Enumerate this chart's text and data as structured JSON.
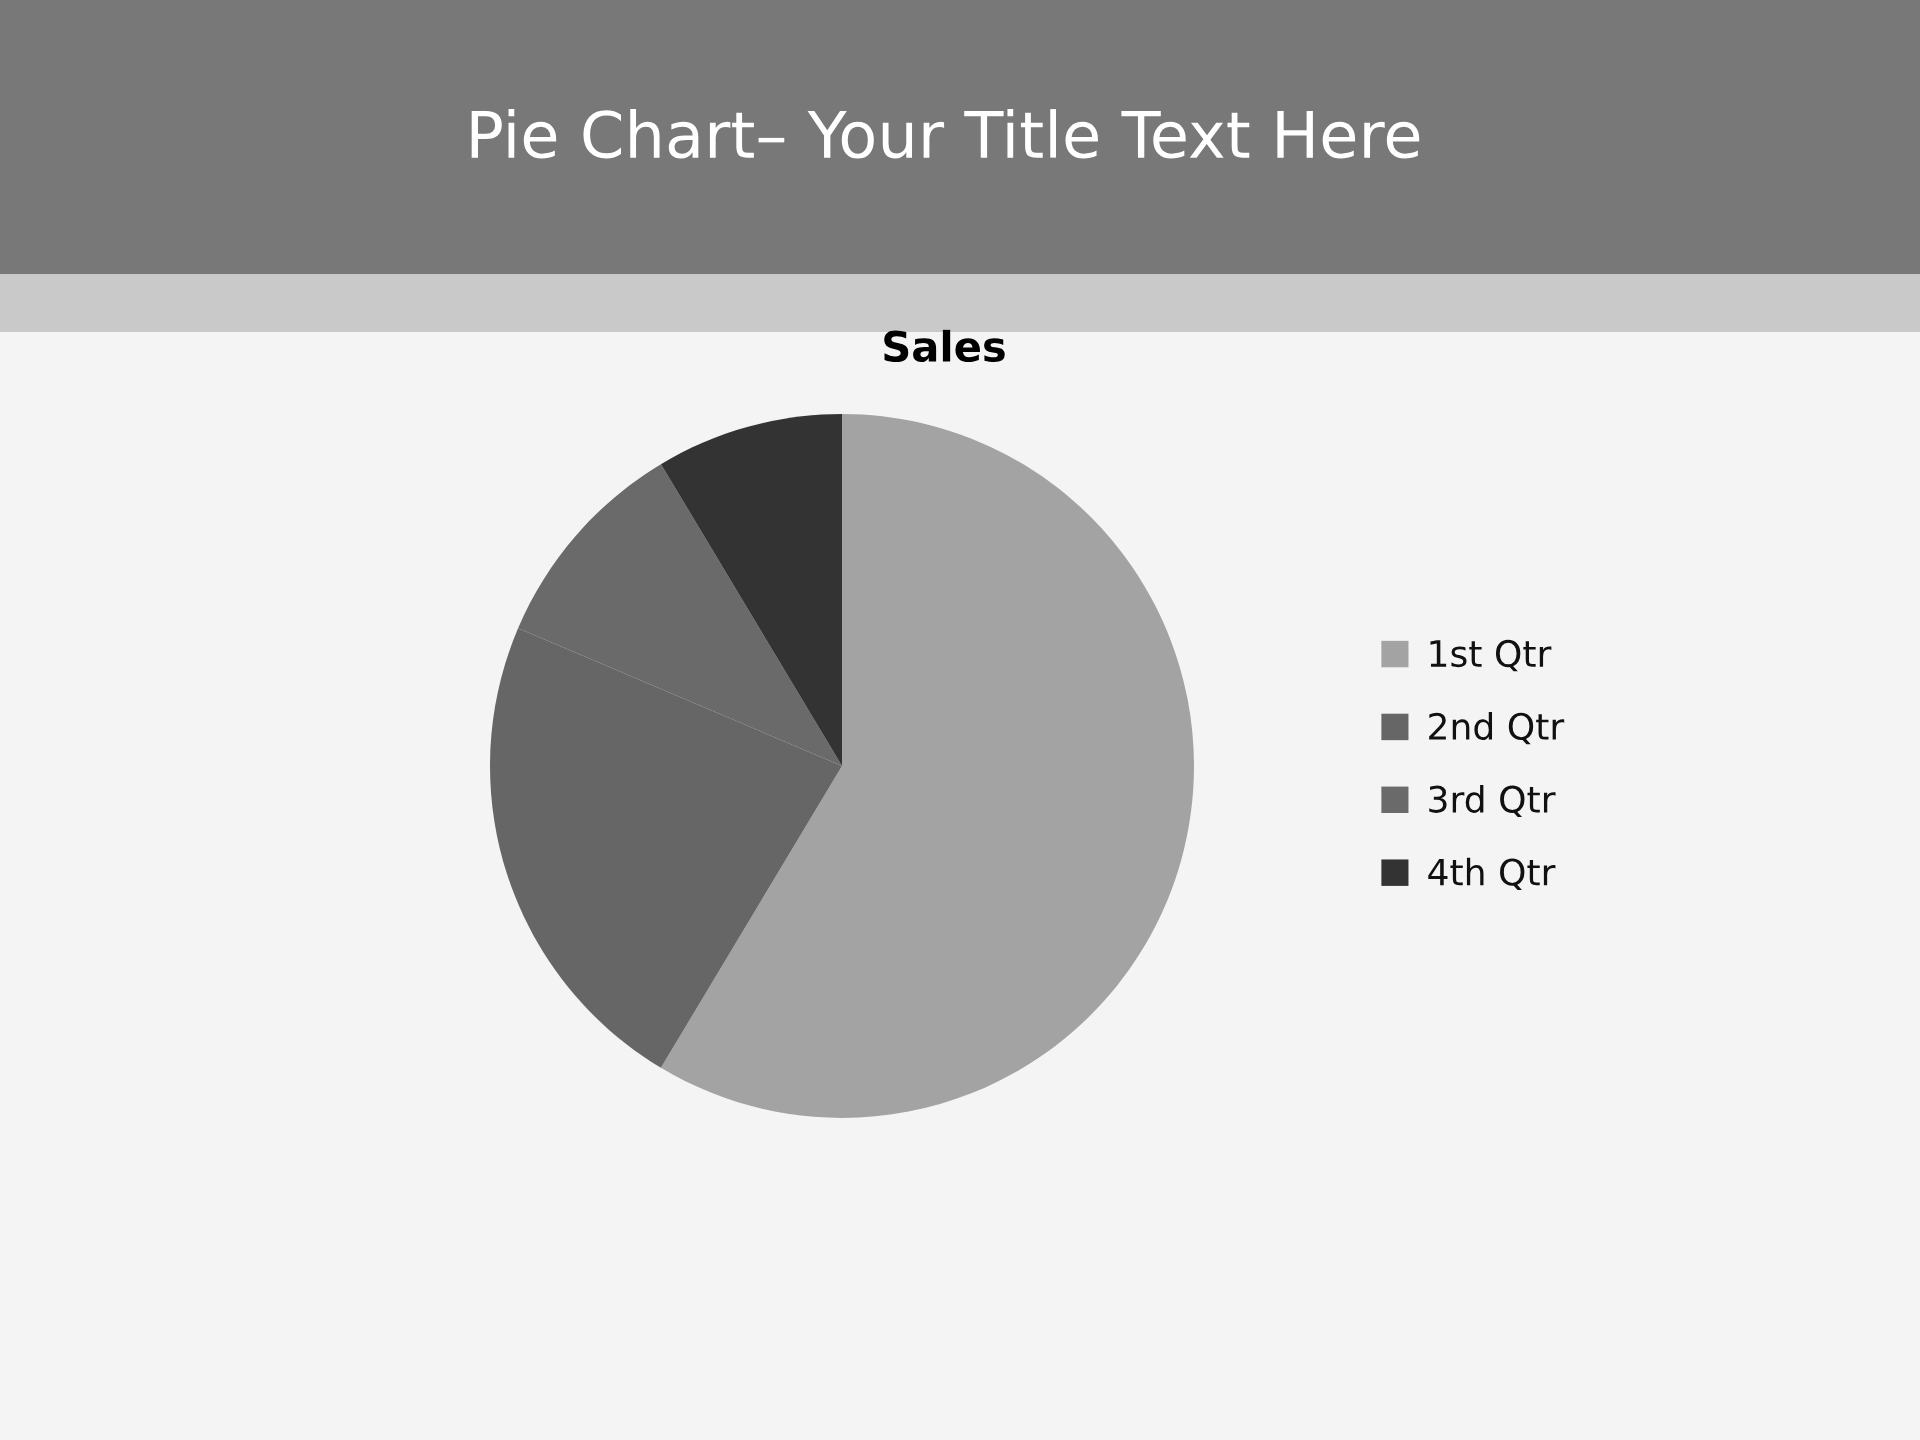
{
  "chart_data": {
    "type": "pie",
    "title": "Pie Chart– Your Title Text Here",
    "subtitle": "Sales",
    "categories": [
      "1st Qtr",
      "2nd Qtr",
      "3rd Qtr",
      "4th Qtr"
    ],
    "values": [
      58.6,
      22.8,
      10.0,
      8.6
    ],
    "colors": [
      "#a3a3a3",
      "#666666",
      "#6a6a6a",
      "#333333"
    ],
    "legend": "right"
  }
}
